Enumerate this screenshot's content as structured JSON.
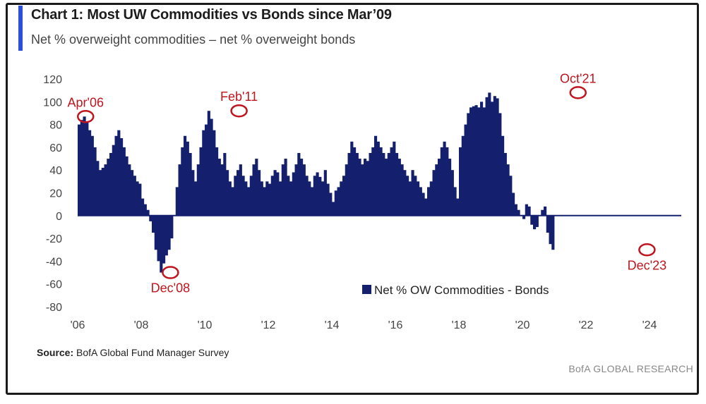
{
  "header": {
    "title": "Chart 1: Most UW Commodities vs Bonds since Mar’09",
    "subtitle": "Net % overweight commodities – net % overweight bonds"
  },
  "footer": {
    "source_label": "Source:",
    "source_text": "BofA Global Fund Manager Survey",
    "watermark": "BofA GLOBAL RESEARCH"
  },
  "colors": {
    "bar": "#14206e",
    "accent": "#2b4fd8",
    "annotation": "#c0151e"
  },
  "chart_data": {
    "type": "bar",
    "ylim": [
      -80,
      120
    ],
    "yticks": [
      120,
      100,
      80,
      60,
      40,
      20,
      0,
      -20,
      -40,
      -60,
      -80
    ],
    "xlim": [
      2006.0,
      2025.0
    ],
    "xticks": [
      {
        "label": "'06",
        "value": 2006
      },
      {
        "label": "'08",
        "value": 2008
      },
      {
        "label": "'10",
        "value": 2010
      },
      {
        "label": "'12",
        "value": 2012
      },
      {
        "label": "'14",
        "value": 2014
      },
      {
        "label": "'16",
        "value": 2016
      },
      {
        "label": "'18",
        "value": 2018
      },
      {
        "label": "'20",
        "value": 2020
      },
      {
        "label": "'22",
        "value": 2022
      },
      {
        "label": "'24",
        "value": 2024
      }
    ],
    "legend": {
      "label": "Net % OW Commodities - Bonds",
      "position": "bottom-right"
    },
    "annotations": [
      {
        "label": "Apr'06",
        "x": 2006.25,
        "y": 87
      },
      {
        "label": "Dec'08",
        "x": 2008.92,
        "y": -50
      },
      {
        "label": "Feb'11",
        "x": 2011.08,
        "y": 92
      },
      {
        "label": "Oct'21",
        "x": 2021.75,
        "y": 108
      },
      {
        "label": "Dec'23",
        "x": 2023.92,
        "y": -30
      }
    ],
    "series": [
      {
        "start": 2006.0,
        "step": 0.0833333,
        "values": [
          80,
          84,
          87,
          82,
          75,
          70,
          60,
          48,
          40,
          42,
          45,
          50,
          55,
          62,
          70,
          75,
          68,
          60,
          52,
          45,
          40,
          35,
          30,
          28,
          15,
          10,
          5,
          -5,
          -15,
          -30,
          -40,
          -50,
          -42,
          -35,
          -30,
          -20,
          0,
          25,
          45,
          60,
          70,
          65,
          55,
          40,
          30,
          45,
          60,
          75,
          80,
          92,
          85,
          75,
          60,
          50,
          45,
          55,
          40,
          30,
          25,
          35,
          40,
          45,
          35,
          30,
          25,
          35,
          45,
          50,
          40,
          30,
          25,
          30,
          28,
          35,
          40,
          38,
          30,
          45,
          50,
          35,
          30,
          38,
          45,
          55,
          50,
          45,
          35,
          30,
          25,
          35,
          38,
          34,
          30,
          40,
          28,
          20,
          12,
          22,
          25,
          30,
          35,
          45,
          55,
          65,
          60,
          55,
          50,
          45,
          50,
          48,
          55,
          60,
          70,
          65,
          60,
          55,
          50,
          55,
          60,
          65,
          55,
          50,
          45,
          40,
          35,
          30,
          40,
          35,
          30,
          25,
          20,
          15,
          25,
          30,
          40,
          45,
          50,
          60,
          65,
          60,
          50,
          40,
          25,
          15,
          60,
          70,
          80,
          90,
          95,
          96,
          97,
          95,
          100,
          95,
          104,
          108,
          100,
          105,
          103,
          90,
          70,
          55,
          45,
          35,
          20,
          10,
          5,
          0,
          -3,
          10,
          8,
          -8,
          -12,
          -10,
          0,
          5,
          8,
          -15,
          -25,
          -30
        ]
      }
    ]
  }
}
